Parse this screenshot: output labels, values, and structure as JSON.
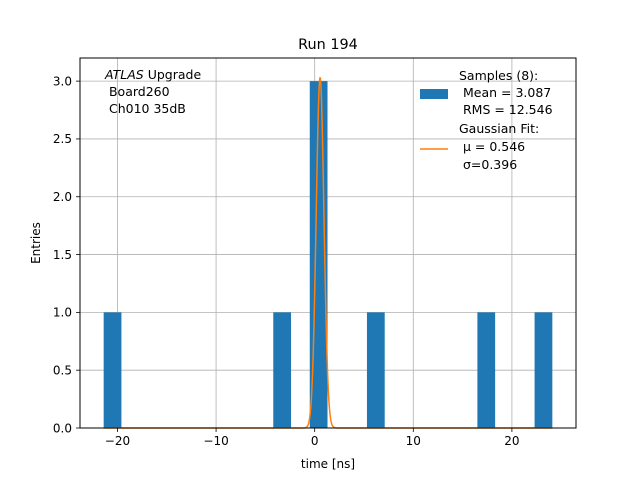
{
  "chart_data": {
    "type": "histogram",
    "title": "Run 194",
    "xlabel": "time [ns]",
    "ylabel": "Entries",
    "xlim": [
      -23.8,
      26.5
    ],
    "ylim": [
      0,
      3.2
    ],
    "x_ticks": [
      -20,
      -10,
      0,
      10,
      20
    ],
    "x_tick_labels": [
      "−20",
      "−10",
      "0",
      "10",
      "20"
    ],
    "y_ticks": [
      0,
      0.5,
      1.0,
      1.5,
      2.0,
      2.5,
      3.0
    ],
    "y_tick_labels": [
      "0.0",
      "0.5",
      "1.0",
      "1.5",
      "2.0",
      "2.5",
      "3.0"
    ],
    "grid": true,
    "bars": [
      {
        "x0": -21.4,
        "x1": -19.6,
        "count": 1
      },
      {
        "x0": -4.2,
        "x1": -2.4,
        "count": 1
      },
      {
        "x0": -0.5,
        "x1": 1.3,
        "count": 3
      },
      {
        "x0": 5.3,
        "x1": 7.1,
        "count": 1
      },
      {
        "x0": 16.5,
        "x1": 18.3,
        "count": 1
      },
      {
        "x0": 22.3,
        "x1": 24.1,
        "count": 1
      }
    ],
    "fit": {
      "type": "gaussian",
      "amplitude": 3.03,
      "mu": 0.546,
      "sigma": 0.396,
      "x_range": [
        -21.4,
        24.1
      ]
    },
    "annotation": {
      "italic_word": "ATLAS",
      "rest_line1": " Upgrade",
      "line2": " Board260",
      "line3": " Ch010 35dB"
    },
    "legend": {
      "location": "upper right",
      "entries": [
        {
          "kind": "bar",
          "lines": [
            "Samples (8):",
            " Mean = 3.087",
            " RMS = 12.546"
          ]
        },
        {
          "kind": "line",
          "lines": [
            "Gaussian Fit:",
            " μ = 0.546",
            " σ=0.396"
          ]
        }
      ]
    },
    "colors": {
      "bar": "#1f77b4",
      "fit": "#ff7f0e",
      "grid": "#b0b0b0",
      "axes": "#000000"
    }
  }
}
